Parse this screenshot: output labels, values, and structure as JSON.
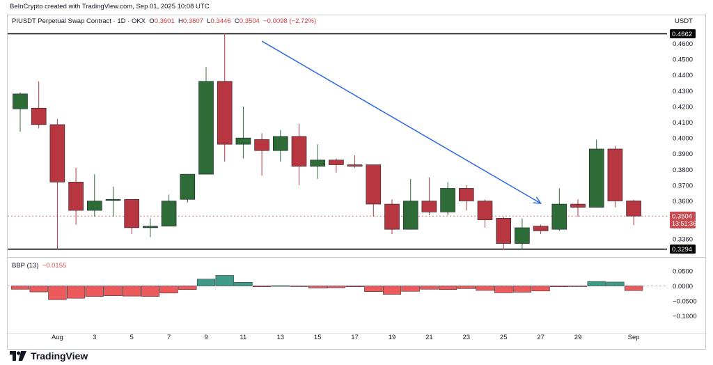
{
  "caption": "BeInCrypto created with TradingView.com, Sep 01, 2025 10:08 UTC",
  "header": {
    "symbol": "PIUSDT Perpetual Swap Contract · 1D · OKX",
    "open_label": "O",
    "open": "0.3601",
    "high_label": "H",
    "high": "0.3607",
    "low_label": "L",
    "low": "0.3446",
    "close_label": "C",
    "close": "0.3504",
    "change": "−0.0098 (−2.72%)",
    "currency": "USDT"
  },
  "price_axis": {
    "ticks": [
      {
        "label": "0.4600",
        "value": 0.46
      },
      {
        "label": "0.4500",
        "value": 0.45
      },
      {
        "label": "0.4400",
        "value": 0.44
      },
      {
        "label": "0.4300",
        "value": 0.43
      },
      {
        "label": "0.4200",
        "value": 0.42
      },
      {
        "label": "0.4100",
        "value": 0.41
      },
      {
        "label": "0.4000",
        "value": 0.4
      },
      {
        "label": "0.3900",
        "value": 0.39
      },
      {
        "label": "0.3800",
        "value": 0.38
      },
      {
        "label": "0.3700",
        "value": 0.37
      },
      {
        "label": "0.3600",
        "value": 0.36
      },
      {
        "label": "0.3440",
        "value": 0.344
      },
      {
        "label": "0.3360",
        "value": 0.336
      }
    ],
    "resistance": {
      "label": "0.4662",
      "value": 0.4662
    },
    "support": {
      "label": "0.3294",
      "value": 0.3294
    },
    "last_price": {
      "label": "0.3504",
      "value": 0.3504
    },
    "countdown": "13:51:36"
  },
  "bbp_axis": {
    "ticks": [
      {
        "label": "0.0500",
        "value": 0.05
      },
      {
        "label": "0.0000",
        "value": 0
      },
      {
        "label": "−0.0500",
        "value": -0.05
      },
      {
        "label": "−0.1000",
        "value": -0.1
      }
    ]
  },
  "bbp_header": {
    "name": "BBP (13)",
    "value": "−0.0155"
  },
  "x_axis": {
    "ticks": [
      {
        "label": "Aug",
        "day": 0
      },
      {
        "label": "3",
        "day": 2
      },
      {
        "label": "5",
        "day": 4
      },
      {
        "label": "7",
        "day": 6
      },
      {
        "label": "9",
        "day": 8
      },
      {
        "label": "11",
        "day": 10
      },
      {
        "label": "13",
        "day": 12
      },
      {
        "label": "15",
        "day": 14
      },
      {
        "label": "17",
        "day": 16
      },
      {
        "label": "19",
        "day": 18
      },
      {
        "label": "21",
        "day": 20
      },
      {
        "label": "23",
        "day": 22
      },
      {
        "label": "25",
        "day": 24
      },
      {
        "label": "27",
        "day": 26
      },
      {
        "label": "29",
        "day": 28
      },
      {
        "label": "Sep",
        "day": 31
      }
    ]
  },
  "chart_data": {
    "type": "candlestick",
    "symbol": "PIUSDT",
    "timeframe": "1D",
    "colors": {
      "up": "#2d6b37",
      "down": "#b7363f",
      "bbp_up": "#3f9b87",
      "bbp_down": "#ec5a5c",
      "trend": "#3b6fe0",
      "level": "#000000"
    },
    "candles": [
      {
        "date": "Jul 29",
        "o": 0.4185,
        "h": 0.429,
        "l": 0.404,
        "c": 0.428
      },
      {
        "date": "Jul 30",
        "o": 0.419,
        "h": 0.436,
        "l": 0.406,
        "c": 0.4085
      },
      {
        "date": "Jul 31",
        "o": 0.4085,
        "h": 0.412,
        "l": 0.3294,
        "c": 0.372
      },
      {
        "date": "Aug 1",
        "o": 0.372,
        "h": 0.381,
        "l": 0.345,
        "c": 0.354
      },
      {
        "date": "Aug 2",
        "o": 0.354,
        "h": 0.377,
        "l": 0.35,
        "c": 0.36
      },
      {
        "date": "Aug 3",
        "o": 0.3605,
        "h": 0.369,
        "l": 0.35,
        "c": 0.361
      },
      {
        "date": "Aug 4",
        "o": 0.361,
        "h": 0.361,
        "l": 0.339,
        "c": 0.343
      },
      {
        "date": "Aug 5",
        "o": 0.343,
        "h": 0.349,
        "l": 0.337,
        "c": 0.344
      },
      {
        "date": "Aug 6",
        "o": 0.344,
        "h": 0.364,
        "l": 0.344,
        "c": 0.36
      },
      {
        "date": "Aug 7",
        "o": 0.361,
        "h": 0.377,
        "l": 0.359,
        "c": 0.377
      },
      {
        "date": "Aug 8",
        "o": 0.377,
        "h": 0.445,
        "l": 0.377,
        "c": 0.436
      },
      {
        "date": "Aug 9",
        "o": 0.436,
        "h": 0.4662,
        "l": 0.385,
        "c": 0.396
      },
      {
        "date": "Aug 10",
        "o": 0.396,
        "h": 0.42,
        "l": 0.387,
        "c": 0.4
      },
      {
        "date": "Aug 11",
        "o": 0.399,
        "h": 0.403,
        "l": 0.376,
        "c": 0.392
      },
      {
        "date": "Aug 12",
        "o": 0.392,
        "h": 0.405,
        "l": 0.385,
        "c": 0.401
      },
      {
        "date": "Aug 13",
        "o": 0.401,
        "h": 0.409,
        "l": 0.37,
        "c": 0.382
      },
      {
        "date": "Aug 14",
        "o": 0.382,
        "h": 0.396,
        "l": 0.374,
        "c": 0.386
      },
      {
        "date": "Aug 15",
        "o": 0.386,
        "h": 0.387,
        "l": 0.378,
        "c": 0.383
      },
      {
        "date": "Aug 16",
        "o": 0.383,
        "h": 0.389,
        "l": 0.381,
        "c": 0.382
      },
      {
        "date": "Aug 17",
        "o": 0.383,
        "h": 0.383,
        "l": 0.35,
        "c": 0.358
      },
      {
        "date": "Aug 18",
        "o": 0.358,
        "h": 0.361,
        "l": 0.339,
        "c": 0.342
      },
      {
        "date": "Aug 19",
        "o": 0.342,
        "h": 0.374,
        "l": 0.342,
        "c": 0.36
      },
      {
        "date": "Aug 20",
        "o": 0.36,
        "h": 0.375,
        "l": 0.351,
        "c": 0.353
      },
      {
        "date": "Aug 21",
        "o": 0.353,
        "h": 0.372,
        "l": 0.351,
        "c": 0.368
      },
      {
        "date": "Aug 22",
        "o": 0.368,
        "h": 0.37,
        "l": 0.354,
        "c": 0.36
      },
      {
        "date": "Aug 23",
        "o": 0.36,
        "h": 0.361,
        "l": 0.343,
        "c": 0.348
      },
      {
        "date": "Aug 24",
        "o": 0.349,
        "h": 0.35,
        "l": 0.329,
        "c": 0.333
      },
      {
        "date": "Aug 25",
        "o": 0.333,
        "h": 0.349,
        "l": 0.3294,
        "c": 0.343
      },
      {
        "date": "Aug 26",
        "o": 0.344,
        "h": 0.345,
        "l": 0.339,
        "c": 0.341
      },
      {
        "date": "Aug 27",
        "o": 0.342,
        "h": 0.368,
        "l": 0.341,
        "c": 0.358
      },
      {
        "date": "Aug 28",
        "o": 0.358,
        "h": 0.361,
        "l": 0.35,
        "c": 0.356
      },
      {
        "date": "Aug 29",
        "o": 0.356,
        "h": 0.399,
        "l": 0.356,
        "c": 0.393
      },
      {
        "date": "Aug 30",
        "o": 0.393,
        "h": 0.395,
        "l": 0.356,
        "c": 0.36
      },
      {
        "date": "Aug 31",
        "o": 0.3601,
        "h": 0.3607,
        "l": 0.3446,
        "c": 0.3504
      }
    ],
    "bbp": [
      -0.011,
      -0.02,
      -0.046,
      -0.041,
      -0.035,
      -0.033,
      -0.034,
      -0.035,
      -0.024,
      -0.012,
      0.023,
      0.035,
      0.012,
      -0.003,
      0.001,
      -0.002,
      -0.007,
      -0.006,
      -0.003,
      -0.019,
      -0.028,
      -0.018,
      -0.011,
      -0.012,
      -0.009,
      -0.015,
      -0.023,
      -0.021,
      -0.017,
      -0.003,
      -0.001,
      0.015,
      0.013,
      -0.0155
    ],
    "trendline": {
      "from": {
        "date": "Aug 11",
        "price": 0.4615
      },
      "to": {
        "date": "Aug 26",
        "price": 0.3585
      }
    }
  }
}
